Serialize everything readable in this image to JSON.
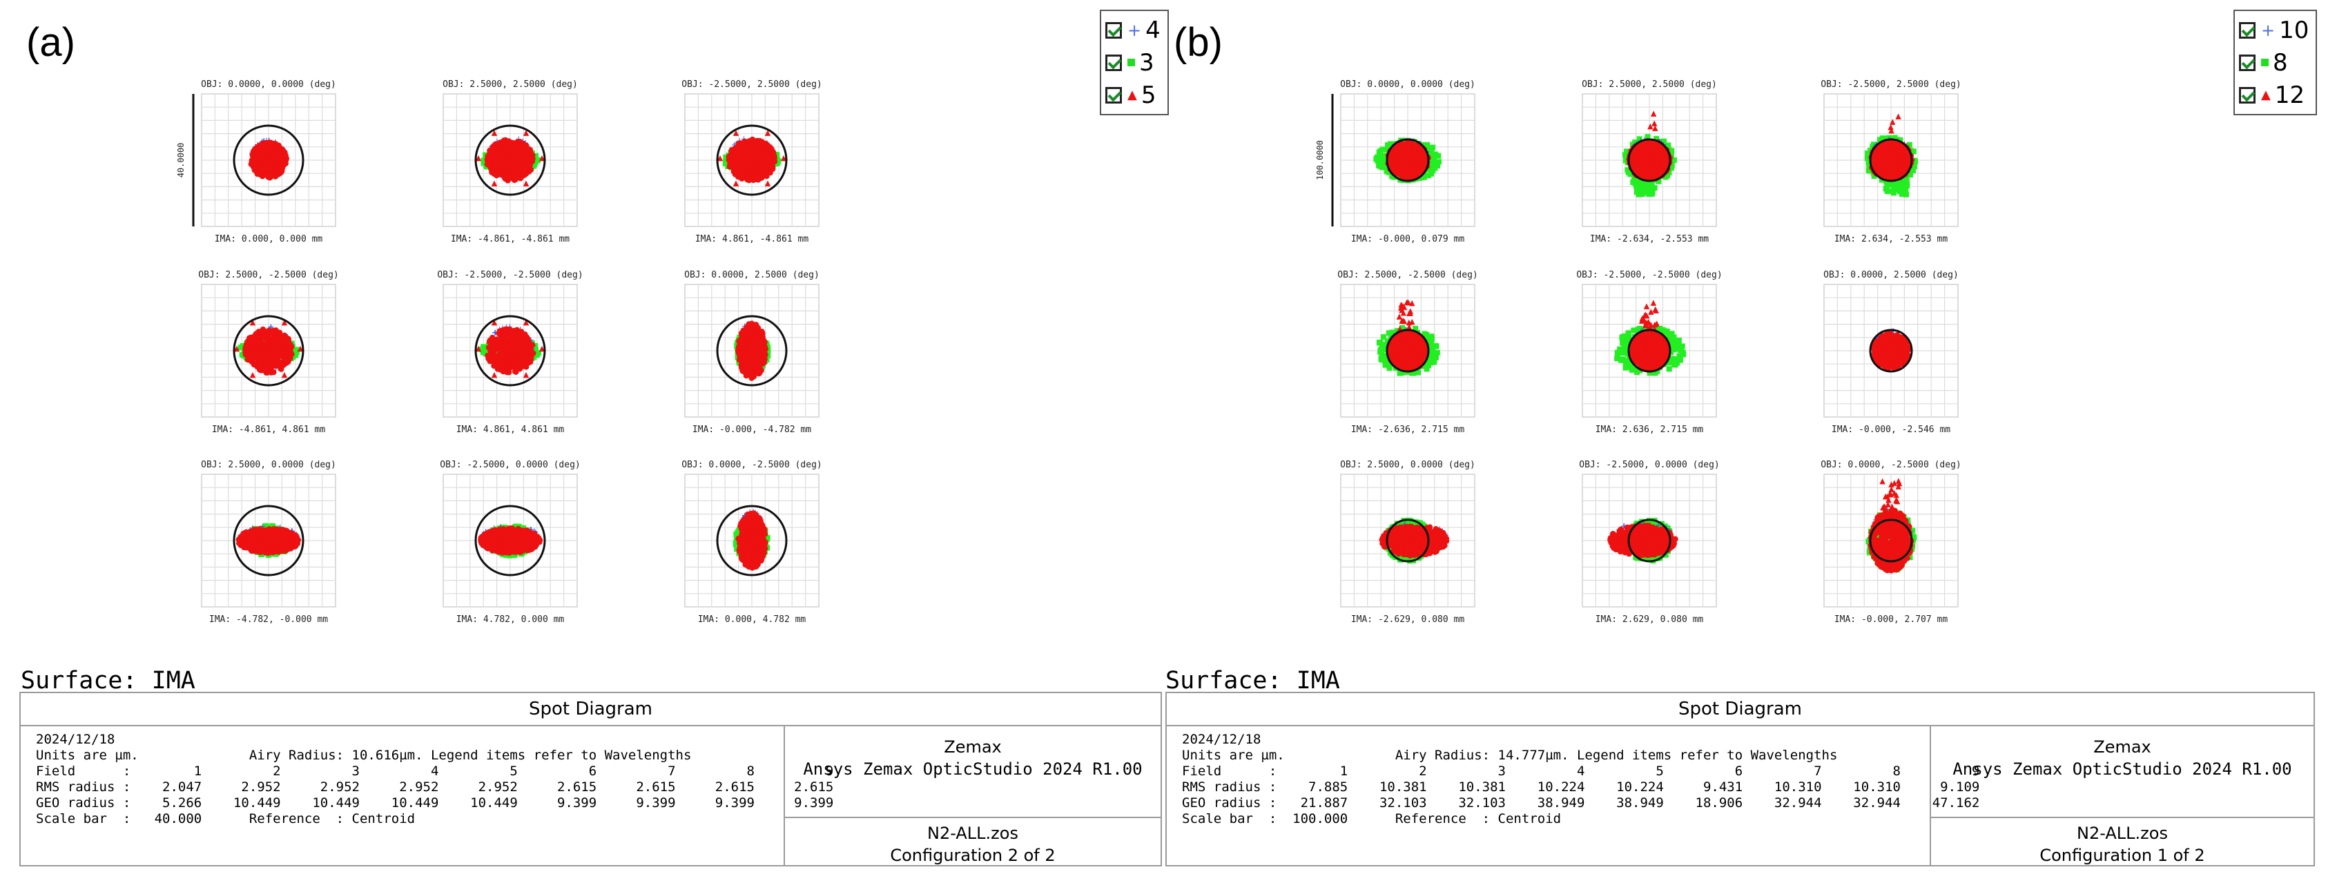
{
  "panels": [
    {
      "tag": "(a)",
      "legend": [
        {
          "label": "4",
          "color": "#4a6cf7",
          "marker": "plus"
        },
        {
          "label": "3",
          "color": "#22dd22",
          "marker": "square"
        },
        {
          "label": "5",
          "color": "#ee1111",
          "marker": "triangle"
        }
      ],
      "scale_text": "40.0000",
      "surface": "Surface: IMA",
      "title": "Spot Diagram",
      "info_lines": [
        "2024/12/18",
        "Units are µm.              Airy Radius: 10.616µm. Legend items refer to Wavelengths",
        "Field      :        1         2         3         4         5         6         7         8         9",
        "RMS radius :    2.047     2.952     2.952     2.952     2.952     2.615     2.615     2.615     2.615",
        "GEO radius :    5.266    10.449    10.449    10.449    10.449     9.399     9.399     9.399     9.399",
        "Scale bar  :   40.000      Reference  : Centroid"
      ],
      "vendor": "Zemax",
      "product": "Ansys Zemax OpticStudio 2024 R1.00",
      "file": "N2-ALL.zos",
      "config": "Configuration 2 of 2"
    },
    {
      "tag": "(b)",
      "legend": [
        {
          "label": "10",
          "color": "#4a6cf7",
          "marker": "plus"
        },
        {
          "label": "8",
          "color": "#22dd22",
          "marker": "square"
        },
        {
          "label": "12",
          "color": "#ee1111",
          "marker": "triangle"
        }
      ],
      "scale_text": "100.0000",
      "surface": "Surface: IMA",
      "title": "Spot Diagram",
      "info_lines": [
        "2024/12/18",
        "Units are µm.              Airy Radius: 14.777µm. Legend items refer to Wavelengths",
        "Field      :        1         2         3         4         5         6         7         8         9",
        "RMS radius :    7.885    10.381    10.381    10.224    10.224     9.431    10.310    10.310     9.109",
        "GEO radius :   21.887    32.103    32.103    38.949    38.949    18.906    32.944    32.944    47.162",
        "Scale bar  :  100.000      Reference  : Centroid"
      ],
      "vendor": "Zemax",
      "product": "Ansys Zemax OpticStudio 2024 R1.00",
      "file": "N2-ALL.zos",
      "config": "Configuration 1 of 2"
    }
  ],
  "chart_data": [
    {
      "type": "scatter",
      "title": "Spot Diagram",
      "units": "µm",
      "airy_radius": 10.616,
      "scale_bar": 40.0,
      "reference": "Centroid",
      "series": [
        {
          "name": "4"
        },
        {
          "name": "3"
        },
        {
          "name": "5"
        }
      ],
      "fields": [
        {
          "field": 1,
          "obj": "OBJ: 0.0000, 0.0000 (deg)",
          "ima": "IMA: 0.000, 0.000 mm",
          "rms": 2.047,
          "geo": 5.266,
          "spot_shape": "round",
          "offset_mm": [
            0.0,
            0.0
          ]
        },
        {
          "field": 2,
          "obj": "OBJ: 2.5000, 2.5000 (deg)",
          "ima": "IMA: -4.861, -4.861 mm",
          "rms": 2.952,
          "geo": 10.449,
          "spot_shape": "star-ul",
          "offset_mm": [
            0.0,
            0.0
          ]
        },
        {
          "field": 3,
          "obj": "OBJ: -2.5000, 2.5000 (deg)",
          "ima": "IMA: 4.861, -4.861 mm",
          "rms": 2.952,
          "geo": 10.449,
          "spot_shape": "star-ur",
          "offset_mm": [
            0.0,
            0.0
          ]
        },
        {
          "field": 4,
          "obj": "OBJ: 2.5000, -2.5000 (deg)",
          "ima": "IMA: -4.861, 4.861 mm",
          "rms": 2.952,
          "geo": 10.449,
          "spot_shape": "star-dl",
          "offset_mm": [
            0.0,
            0.0
          ]
        },
        {
          "field": 5,
          "obj": "OBJ: -2.5000, -2.5000 (deg)",
          "ima": "IMA: 4.861, 4.861 mm",
          "rms": 2.952,
          "geo": 10.449,
          "spot_shape": "star-dr",
          "offset_mm": [
            0.0,
            0.0
          ]
        },
        {
          "field": 6,
          "obj": "OBJ: 0.0000, 2.5000 (deg)",
          "ima": "IMA: -0.000, -4.782 mm",
          "rms": 2.615,
          "geo": 9.399,
          "spot_shape": "vertical",
          "offset_mm": [
            0.0,
            0.0
          ]
        },
        {
          "field": 7,
          "obj": "OBJ: 2.5000, 0.0000 (deg)",
          "ima": "IMA: -4.782, -0.000 mm",
          "rms": 2.615,
          "geo": 9.399,
          "spot_shape": "horizontal",
          "offset_mm": [
            0.0,
            0.0
          ]
        },
        {
          "field": 8,
          "obj": "OBJ: -2.5000, 0.0000 (deg)",
          "ima": "IMA: 4.782, 0.000 mm",
          "rms": 2.615,
          "geo": 9.399,
          "spot_shape": "horizontal",
          "offset_mm": [
            0.0,
            0.0
          ]
        },
        {
          "field": 9,
          "obj": "OBJ: 0.0000, -2.5000 (deg)",
          "ima": "IMA: 0.000, 4.782 mm",
          "rms": 2.615,
          "geo": 9.399,
          "spot_shape": "vertical",
          "offset_mm": [
            0.0,
            0.0
          ]
        }
      ]
    },
    {
      "type": "scatter",
      "title": "Spot Diagram",
      "units": "µm",
      "airy_radius": 14.777,
      "scale_bar": 100.0,
      "reference": "Centroid",
      "series": [
        {
          "name": "10"
        },
        {
          "name": "8"
        },
        {
          "name": "12"
        }
      ],
      "fields": [
        {
          "field": 1,
          "obj": "OBJ: 0.0000, 0.0000 (deg)",
          "ima": "IMA: -0.000, 0.079 mm",
          "rms": 7.885,
          "geo": 21.887,
          "spot_shape": "blob-wide"
        },
        {
          "field": 2,
          "obj": "OBJ: 2.5000, 2.5000 (deg)",
          "ima": "IMA: -2.634, -2.553 mm",
          "rms": 10.381,
          "geo": 32.103,
          "spot_shape": "tail-dl"
        },
        {
          "field": 3,
          "obj": "OBJ: -2.5000, 2.5000 (deg)",
          "ima": "IMA: 2.634, -2.553 mm",
          "rms": 10.381,
          "geo": 32.103,
          "spot_shape": "tail-dr"
        },
        {
          "field": 4,
          "obj": "OBJ: 2.5000, -2.5000 (deg)",
          "ima": "IMA: -2.636, 2.715 mm",
          "rms": 10.224,
          "geo": 38.949,
          "spot_shape": "spray-up"
        },
        {
          "field": 5,
          "obj": "OBJ: -2.5000, -2.5000 (deg)",
          "ima": "IMA: 2.636, 2.715 mm",
          "rms": 10.224,
          "geo": 38.949,
          "spot_shape": "spray-up-l"
        },
        {
          "field": 6,
          "obj": "OBJ: 0.0000, 2.5000 (deg)",
          "ima": "IMA: -0.000, -2.546 mm",
          "rms": 9.431,
          "geo": 18.906,
          "spot_shape": "round"
        },
        {
          "field": 7,
          "obj": "OBJ: 2.5000, 0.0000 (deg)",
          "ima": "IMA: -2.629, 0.080 mm",
          "rms": 10.31,
          "geo": 32.944,
          "spot_shape": "wedge-r"
        },
        {
          "field": 8,
          "obj": "OBJ: -2.5000, 0.0000 (deg)",
          "ima": "IMA: 2.629, 0.080 mm",
          "rms": 10.31,
          "geo": 32.944,
          "spot_shape": "wedge-l"
        },
        {
          "field": 9,
          "obj": "OBJ: 0.0000, -2.5000 (deg)",
          "ima": "IMA: -0.000, 2.707 mm",
          "rms": 9.109,
          "geo": 47.162,
          "spot_shape": "tall-spray"
        }
      ]
    }
  ]
}
